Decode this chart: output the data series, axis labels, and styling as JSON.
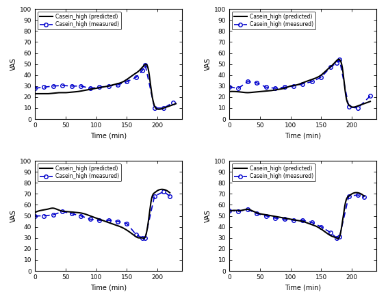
{
  "title": "",
  "xlabel": "Time (min)",
  "ylabel": "VAS",
  "legend_predicted": "Casein_high (predicted)",
  "legend_measured": "Casein_high (measured)",
  "xlim": [
    0,
    240
  ],
  "ylim": [
    0,
    100
  ],
  "xticks": [
    0,
    50,
    100,
    150,
    200
  ],
  "yticks": [
    0,
    10,
    20,
    30,
    40,
    50,
    60,
    70,
    80,
    90,
    100
  ],
  "predicted_color": "#000000",
  "measured_color": "#0000cc",
  "subplot1_pred_x": [
    0,
    10,
    20,
    30,
    40,
    50,
    60,
    70,
    80,
    90,
    100,
    110,
    120,
    130,
    140,
    150,
    160,
    170,
    175,
    180,
    185,
    190,
    195,
    200,
    210,
    220,
    230
  ],
  "subplot1_pred_y": [
    23,
    23,
    23,
    23.5,
    24,
    24,
    24.5,
    25,
    26,
    27,
    28,
    29,
    30,
    31.5,
    33,
    36,
    40,
    44,
    47,
    49.5,
    45,
    25,
    12,
    9,
    10,
    12,
    14
  ],
  "subplot1_meas_x": [
    0,
    15,
    30,
    45,
    60,
    75,
    90,
    105,
    120,
    135,
    150,
    165,
    175,
    180,
    195,
    210,
    225
  ],
  "subplot1_meas_y": [
    28,
    29,
    30,
    30.5,
    30,
    30,
    28,
    29,
    30,
    31,
    34,
    38,
    44,
    49,
    10,
    10,
    15
  ],
  "subplot2_pred_x": [
    0,
    10,
    20,
    30,
    40,
    50,
    60,
    70,
    80,
    90,
    100,
    110,
    120,
    130,
    140,
    150,
    160,
    170,
    175,
    180,
    185,
    190,
    195,
    200,
    210,
    220,
    230
  ],
  "subplot2_pred_y": [
    25,
    25,
    24.5,
    24,
    24.5,
    25,
    25.5,
    26,
    27,
    28,
    30,
    31,
    33,
    35,
    37,
    40,
    45,
    50,
    53,
    54,
    45,
    22,
    13,
    11,
    12,
    14,
    16
  ],
  "subplot2_meas_x": [
    0,
    15,
    30,
    45,
    60,
    75,
    90,
    105,
    120,
    135,
    150,
    165,
    175,
    180,
    195,
    210,
    230
  ],
  "subplot2_meas_y": [
    29,
    28,
    34,
    33,
    29,
    28,
    29,
    30,
    32,
    34,
    38,
    47,
    51,
    54,
    11,
    10,
    21
  ],
  "subplot3_pred_x": [
    0,
    10,
    20,
    30,
    40,
    50,
    60,
    70,
    80,
    90,
    100,
    110,
    120,
    130,
    140,
    150,
    160,
    170,
    175,
    180,
    185,
    190,
    195,
    200,
    210,
    215,
    220
  ],
  "subplot3_pred_y": [
    53,
    55,
    56,
    57,
    55,
    54,
    53.5,
    53,
    52,
    50,
    48,
    46,
    44,
    42,
    40,
    37,
    33,
    30,
    30,
    31,
    45,
    65,
    71,
    73,
    74,
    73,
    71
  ],
  "subplot3_meas_x": [
    0,
    15,
    30,
    45,
    60,
    75,
    90,
    105,
    120,
    135,
    150,
    165,
    175,
    180,
    195,
    210,
    220
  ],
  "subplot3_meas_y": [
    50,
    50,
    51,
    54,
    52,
    50,
    47,
    46,
    46,
    45,
    43,
    33,
    30,
    30,
    68,
    72,
    68
  ],
  "subplot4_pred_x": [
    0,
    10,
    20,
    30,
    40,
    50,
    60,
    70,
    80,
    90,
    100,
    110,
    120,
    130,
    140,
    150,
    160,
    170,
    175,
    180,
    185,
    190,
    195,
    200,
    210,
    215,
    220
  ],
  "subplot4_pred_y": [
    54,
    55,
    55,
    56,
    54,
    52,
    51,
    50,
    49,
    48,
    47,
    46,
    45,
    43,
    41,
    38,
    34,
    31,
    30,
    31,
    46,
    63,
    68,
    70,
    71,
    70,
    68
  ],
  "subplot4_meas_x": [
    0,
    15,
    30,
    45,
    60,
    75,
    90,
    105,
    120,
    135,
    150,
    165,
    175,
    180,
    195,
    210,
    220
  ],
  "subplot4_meas_y": [
    55,
    54,
    56,
    52,
    50,
    48,
    47,
    46,
    46,
    44,
    40,
    35,
    30,
    31,
    68,
    69,
    67
  ]
}
